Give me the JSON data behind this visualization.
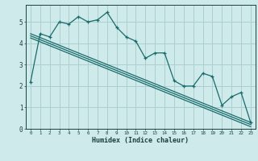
{
  "xlabel": "Humidex (Indice chaleur)",
  "background_color": "#ceeaea",
  "grid_color": "#aacfcf",
  "line_color": "#1a6b6b",
  "xlim": [
    -0.5,
    23.5
  ],
  "ylim": [
    0,
    5.8
  ],
  "yticks": [
    0,
    1,
    2,
    3,
    4,
    5
  ],
  "xticks": [
    0,
    1,
    2,
    3,
    4,
    5,
    6,
    7,
    8,
    9,
    10,
    11,
    12,
    13,
    14,
    15,
    16,
    17,
    18,
    19,
    20,
    21,
    22,
    23
  ],
  "line1_x": [
    0,
    1,
    2,
    3,
    4,
    5,
    6,
    7,
    8,
    9,
    10,
    11,
    12,
    13,
    14,
    15,
    16,
    17,
    18,
    19,
    20,
    21,
    22,
    23
  ],
  "line1_y": [
    2.2,
    4.45,
    4.3,
    5.0,
    4.9,
    5.25,
    5.0,
    5.1,
    5.45,
    4.75,
    4.3,
    4.1,
    3.3,
    3.55,
    3.55,
    2.25,
    2.0,
    2.0,
    2.6,
    2.45,
    1.1,
    1.5,
    1.7,
    0.3
  ],
  "line2_x": [
    0,
    23
  ],
  "line2_y": [
    4.45,
    0.3
  ],
  "line3_x": [
    0,
    23
  ],
  "line3_y": [
    4.35,
    0.2
  ],
  "line4_x": [
    0,
    23
  ],
  "line4_y": [
    4.25,
    0.1
  ]
}
